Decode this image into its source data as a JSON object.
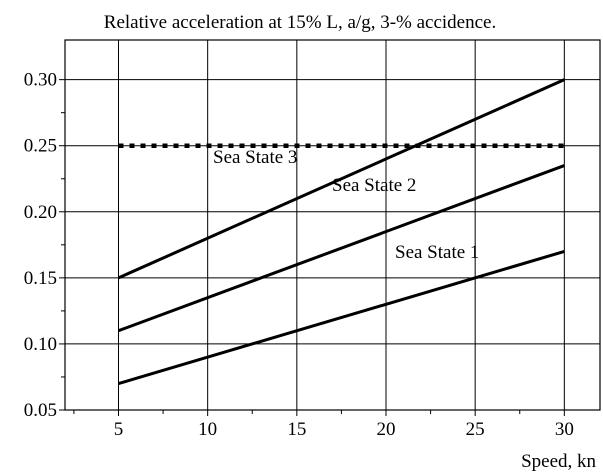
{
  "chart_data": {
    "type": "line",
    "title": "Relative acceleration at 15% L, a/g, 3-% accidence.",
    "xlabel": "Speed, kn",
    "ylabel": "",
    "xlim": [
      2,
      32
    ],
    "ylim": [
      0.05,
      0.33
    ],
    "x_ticks": [
      5,
      10,
      15,
      20,
      25,
      30
    ],
    "y_ticks": [
      0.05,
      0.1,
      0.15,
      0.2,
      0.25,
      0.3
    ],
    "y_tick_labels": [
      "0.05",
      "0.10",
      "0.15",
      "0.20",
      "0.25",
      "0.30"
    ],
    "grid": true,
    "series": [
      {
        "name": "Sea State 3",
        "x": [
          5,
          30
        ],
        "values": [
          0.15,
          0.3
        ]
      },
      {
        "name": "Sea State 2",
        "x": [
          5,
          30
        ],
        "values": [
          0.11,
          0.235
        ]
      },
      {
        "name": "Sea State 1",
        "x": [
          5,
          30
        ],
        "values": [
          0.07,
          0.17
        ]
      }
    ],
    "reference_line": {
      "y": 0.25,
      "x": [
        5,
        30
      ],
      "style": "dotted"
    }
  }
}
